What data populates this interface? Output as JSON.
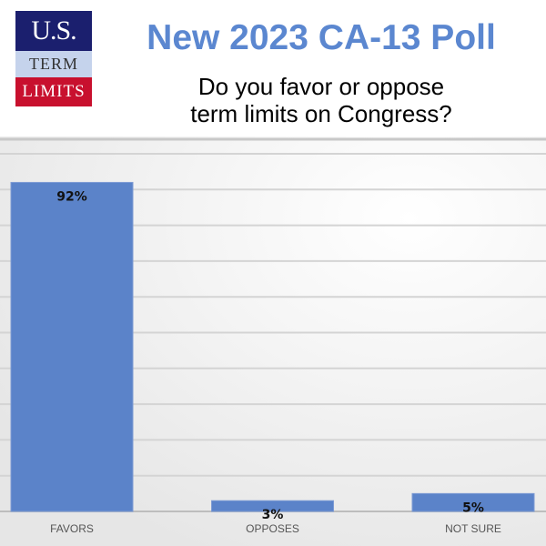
{
  "logo": {
    "line1": "U.S.",
    "line2": "TERM",
    "line3": "LIMITS"
  },
  "chart_data": {
    "type": "bar",
    "title": "New 2023 CA-13 Poll",
    "subtitle": "Do you favor or oppose term limits on Congress?",
    "subtitle_lines": [
      "Do you favor or oppose",
      "term limits on Congress?"
    ],
    "categories": [
      "FAVORS",
      "OPPOSES",
      "NOT SURE"
    ],
    "values": [
      92,
      3,
      5
    ],
    "data_labels": [
      "92%",
      "3%",
      "5%"
    ],
    "xlabel": "",
    "ylabel": "",
    "ylim": [
      0,
      100
    ],
    "grid": true,
    "grid_step": 10,
    "bar_color": "#5b83c9",
    "title_color": "#5b87d0"
  }
}
